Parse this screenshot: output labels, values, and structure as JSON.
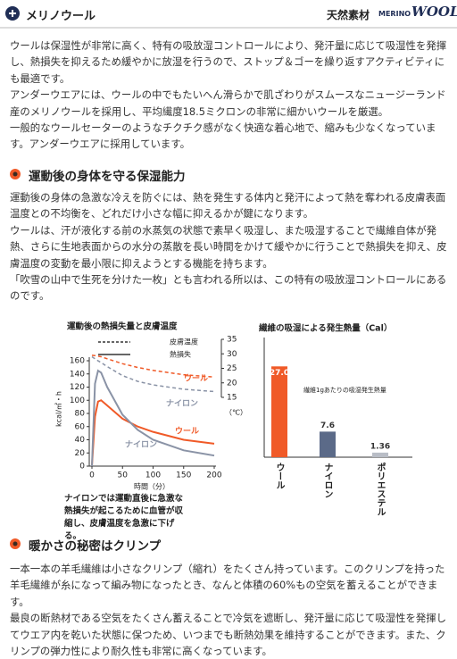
{
  "header": {
    "title": "メリノウール",
    "tag": "天然素材",
    "logo_small": "MERINO",
    "logo_large": "WOOL"
  },
  "intro": [
    "ウールは保湿性が非常に高く、特有の吸放湿コントロールにより、発汗量に応じて吸湿性を発揮し、熱損失を抑えるため緩やかに放湿を行うので、ストップ＆ゴーを繰り返すアクティビティにも最適です。",
    "アンダーウエアには、ウールの中でもたいへん滑らかで肌ざわりがスムースなニュージーランド産のメリノウールを採用し、平均繊度18.5ミクロンの非常に細かいウールを厳選。",
    "一般的なウールセーターのようなチクチク感がなく快適な着心地で、縮みも少なくなっています。アンダーウエアに採用しています。"
  ],
  "sections": [
    {
      "heading": "運動後の身体を守る保湿能力",
      "paragraphs": [
        "運動後の身体の急激な冷えを防ぐには、熱を発生する体内と発汗によって熱を奪われる皮膚表面温度との不均衡を、どれだけ小さな幅に抑えるかが鍵になります。",
        "ウールは、汗が液化する前の水蒸気の状態で素早く吸湿し、また吸湿することで繊維自体が発熱、さらに生地表面からの水分の蒸散を長い時間をかけて緩やかに行うことで熱損失を抑え、皮膚温度の変動を最小限に抑えようとする機能を持ちます。",
        "「吹雪の山中で生死を分けた一枚」とも言われる所以は、この特有の吸放湿コントロールにあるのです。"
      ]
    },
    {
      "heading": "暖かさの秘密はクリンプ",
      "paragraphs": [
        "一本一本の羊毛繊維は小さなクリンプ（縮れ）をたくさん持っています。このクリンプを持った羊毛繊維が糸になって編み物になったとき、なんと体積の60%もの空気を蓄えることができます。",
        "最良の断熱材である空気をたくさん蓄えることで冷気を遮断し、発汗量に応じて吸湿性を発揮してウエア内を乾いた状態に保つため、いつまでも断熱効果を維持することができます。また、クリンプの弾力性により耐久性も非常に高くなっています。"
      ]
    }
  ],
  "chart_data": [
    {
      "type": "line",
      "title": "運動後の熱損失量と皮膚温度",
      "xlabel": "時間（分）",
      "ylabel": "kcal/㎡・h",
      "y2label": "（℃）",
      "note": "ナイロンでは運動直後に急激な熱損失が起こるために血管が収縮し、皮膚温度を急激に下げる。",
      "legend": [
        {
          "label": "皮膚温度",
          "dashed": true
        },
        {
          "label": "熱損失",
          "dashed": false
        }
      ],
      "x": [
        0,
        5,
        10,
        15,
        25,
        50,
        75,
        100,
        150,
        200
      ],
      "xlim": [
        0,
        200
      ],
      "xticks": [
        0,
        50,
        100,
        150,
        200
      ],
      "ylim": [
        0,
        160
      ],
      "yticks": [
        0,
        20,
        40,
        60,
        80,
        100,
        120,
        140,
        160
      ],
      "y2lim": [
        15,
        35
      ],
      "y2ticks": [
        15,
        20,
        25,
        30,
        35
      ],
      "series": [
        {
          "name": "ウール",
          "color": "#f05a28",
          "dashed": false,
          "values": [
            0,
            75,
            98,
            100,
            92,
            72,
            60,
            52,
            40,
            34
          ]
        },
        {
          "name": "ナイロン",
          "color": "#8a93a6",
          "dashed": false,
          "values": [
            0,
            125,
            145,
            142,
            120,
            78,
            55,
            40,
            24,
            16
          ]
        },
        {
          "name": "ウール",
          "color": "#f05a28",
          "dashed": true,
          "axis": "y2",
          "values": [
            29.5,
            29.4,
            29.2,
            29,
            28.3,
            26.6,
            25.3,
            24.3,
            22.8,
            22
          ]
        },
        {
          "name": "ナイロン",
          "color": "#8a93a6",
          "dashed": true,
          "axis": "y2",
          "values": [
            29,
            28.3,
            27.6,
            27,
            25.6,
            22.5,
            20.5,
            19.3,
            17.8,
            17
          ]
        }
      ]
    },
    {
      "type": "bar",
      "title": "繊維の吸湿による発生熱量（Cal）",
      "note": "繊維1gあたりの吸湿発生熱量",
      "categories": [
        "ウール",
        "ナイロン",
        "ポリエステル"
      ],
      "values": [
        27.0,
        7.6,
        1.36
      ],
      "value_labels": [
        "27.0",
        "7.6",
        "1.36"
      ],
      "colors": [
        "#f05a28",
        "#5b6a88",
        "#b9bdc6"
      ],
      "ylim": [
        0,
        30
      ]
    }
  ]
}
